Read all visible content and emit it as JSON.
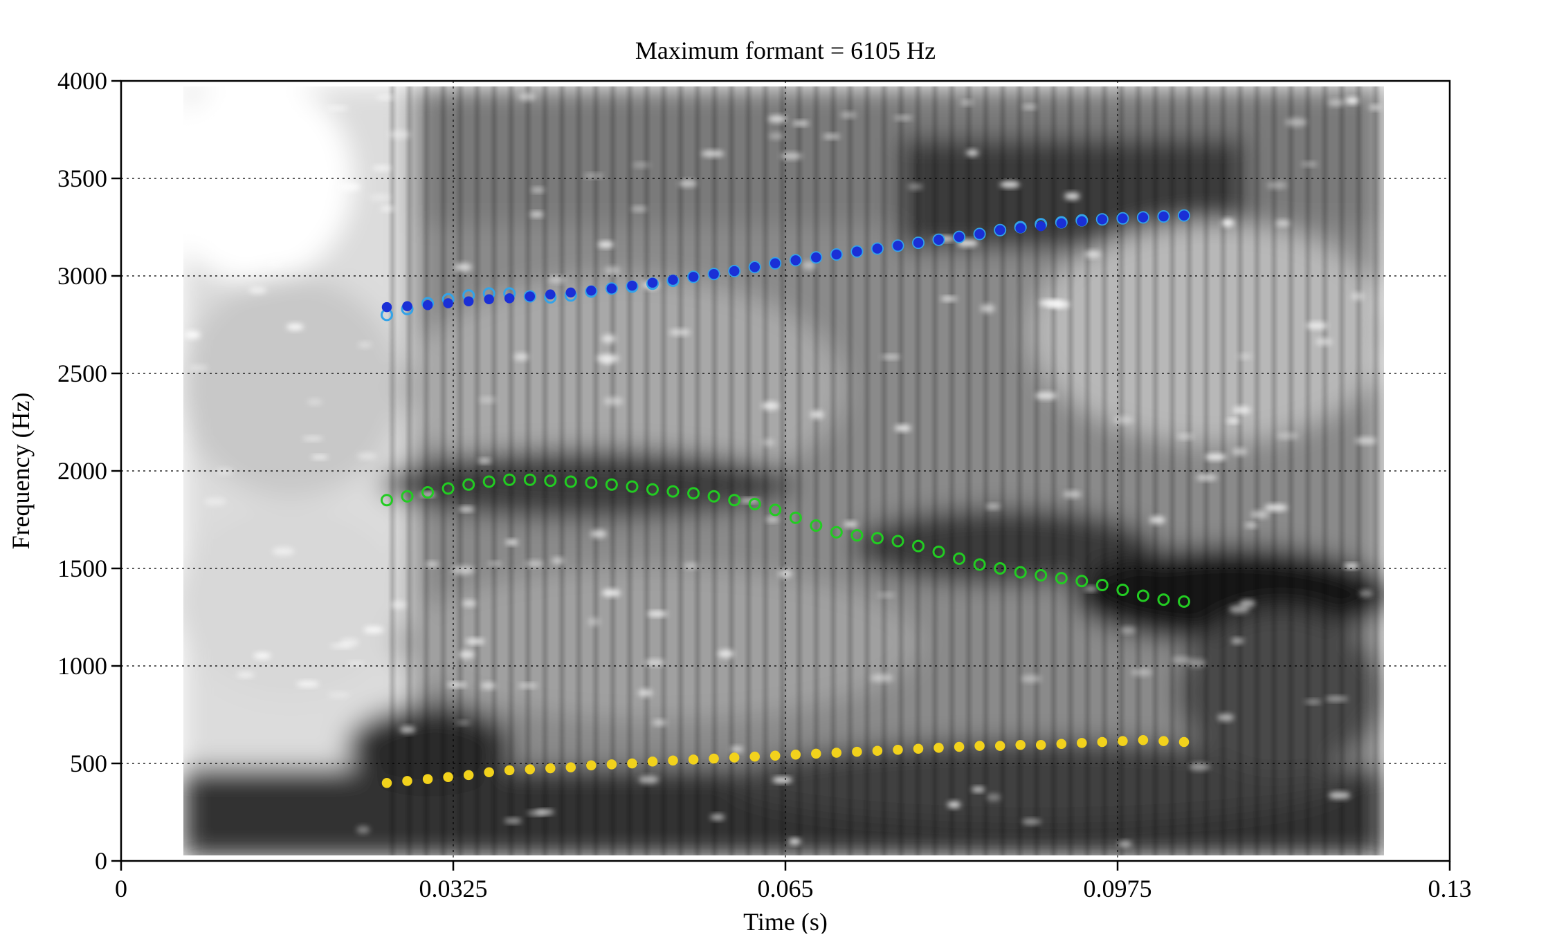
{
  "chart_data": {
    "type": "scatter",
    "title": "Maximum formant = 6105 Hz",
    "xlabel": "Time (s)",
    "ylabel": "Frequency (Hz)",
    "xlim": [
      0,
      0.13
    ],
    "ylim": [
      0,
      4000
    ],
    "x_ticks": [
      0,
      0.0325,
      0.065,
      0.0975,
      0.13
    ],
    "x_tick_labels": [
      "0",
      "0.0325",
      "0.065",
      "0.0975",
      "0.13"
    ],
    "y_ticks": [
      0,
      500,
      1000,
      1500,
      2000,
      2500,
      3000,
      3500,
      4000
    ],
    "y_tick_labels": [
      "0",
      "500",
      "1000",
      "1500",
      "2000",
      "2500",
      "3000",
      "3500",
      "4000"
    ],
    "grid": true,
    "background": "grayscale spectrogram",
    "series": [
      {
        "color": "#f2d21c",
        "marker": "filled",
        "x": [
          0.026,
          0.028,
          0.03,
          0.032,
          0.034,
          0.036,
          0.038,
          0.04,
          0.042,
          0.044,
          0.046,
          0.048,
          0.05,
          0.052,
          0.054,
          0.056,
          0.058,
          0.06,
          0.062,
          0.064,
          0.066,
          0.068,
          0.07,
          0.072,
          0.074,
          0.076,
          0.078,
          0.08,
          0.082,
          0.084,
          0.086,
          0.088,
          0.09,
          0.092,
          0.094,
          0.096,
          0.098,
          0.1,
          0.102,
          0.104
        ],
        "y": [
          400,
          410,
          420,
          430,
          440,
          455,
          465,
          470,
          475,
          480,
          490,
          495,
          500,
          510,
          515,
          520,
          525,
          530,
          535,
          540,
          545,
          550,
          555,
          560,
          565,
          570,
          575,
          580,
          585,
          590,
          590,
          595,
          595,
          600,
          605,
          610,
          615,
          620,
          615,
          610
        ]
      },
      {
        "color": "#22cc22",
        "marker": "open",
        "x": [
          0.026,
          0.028,
          0.03,
          0.032,
          0.034,
          0.036,
          0.038,
          0.04,
          0.042,
          0.044,
          0.046,
          0.048,
          0.05,
          0.052,
          0.054,
          0.056,
          0.058,
          0.06,
          0.062,
          0.064,
          0.066,
          0.068,
          0.07,
          0.072,
          0.074,
          0.076,
          0.078,
          0.08,
          0.082,
          0.084,
          0.086,
          0.088,
          0.09,
          0.092,
          0.094,
          0.096,
          0.098,
          0.1,
          0.102,
          0.104
        ],
        "y": [
          1850,
          1870,
          1890,
          1910,
          1930,
          1945,
          1955,
          1955,
          1950,
          1945,
          1940,
          1930,
          1920,
          1905,
          1895,
          1885,
          1870,
          1850,
          1830,
          1800,
          1760,
          1720,
          1685,
          1670,
          1655,
          1640,
          1615,
          1585,
          1550,
          1520,
          1500,
          1480,
          1465,
          1450,
          1435,
          1415,
          1390,
          1360,
          1340,
          1330
        ]
      },
      {
        "color": "#33a3e8",
        "marker": "open",
        "x": [
          0.026,
          0.028,
          0.03,
          0.032,
          0.034,
          0.036,
          0.038,
          0.04,
          0.042,
          0.044,
          0.046,
          0.048,
          0.05,
          0.052,
          0.054,
          0.056,
          0.058,
          0.06,
          0.062,
          0.064,
          0.066,
          0.068,
          0.07,
          0.072,
          0.074,
          0.076,
          0.078,
          0.08,
          0.082,
          0.084,
          0.086,
          0.088,
          0.09,
          0.092,
          0.094,
          0.096,
          0.098,
          0.1,
          0.102,
          0.104
        ],
        "y": [
          2800,
          2830,
          2860,
          2880,
          2900,
          2910,
          2910,
          2895,
          2890,
          2900,
          2920,
          2935,
          2945,
          2960,
          2975,
          2995,
          3010,
          3025,
          3045,
          3065,
          3080,
          3095,
          3110,
          3125,
          3140,
          3155,
          3170,
          3185,
          3200,
          3215,
          3235,
          3250,
          3265,
          3275,
          3285,
          3290,
          3295,
          3300,
          3305,
          3310
        ]
      },
      {
        "color": "#1a2fd6",
        "marker": "filled",
        "x": [
          0.026,
          0.028,
          0.03,
          0.032,
          0.034,
          0.036,
          0.038,
          0.04,
          0.042,
          0.044,
          0.046,
          0.048,
          0.05,
          0.052,
          0.054,
          0.056,
          0.058,
          0.06,
          0.062,
          0.064,
          0.066,
          0.068,
          0.07,
          0.072,
          0.074,
          0.076,
          0.078,
          0.08,
          0.082,
          0.084,
          0.086,
          0.088,
          0.09,
          0.092,
          0.094,
          0.096,
          0.098,
          0.1,
          0.102,
          0.104
        ],
        "y": [
          2840,
          2845,
          2850,
          2860,
          2870,
          2880,
          2885,
          2895,
          2905,
          2915,
          2925,
          2935,
          2950,
          2965,
          2980,
          2995,
          3010,
          3025,
          3045,
          3065,
          3080,
          3095,
          3110,
          3125,
          3140,
          3155,
          3170,
          3185,
          3200,
          3215,
          3235,
          3245,
          3255,
          3270,
          3280,
          3290,
          3295,
          3300,
          3305,
          3310
        ]
      }
    ]
  }
}
